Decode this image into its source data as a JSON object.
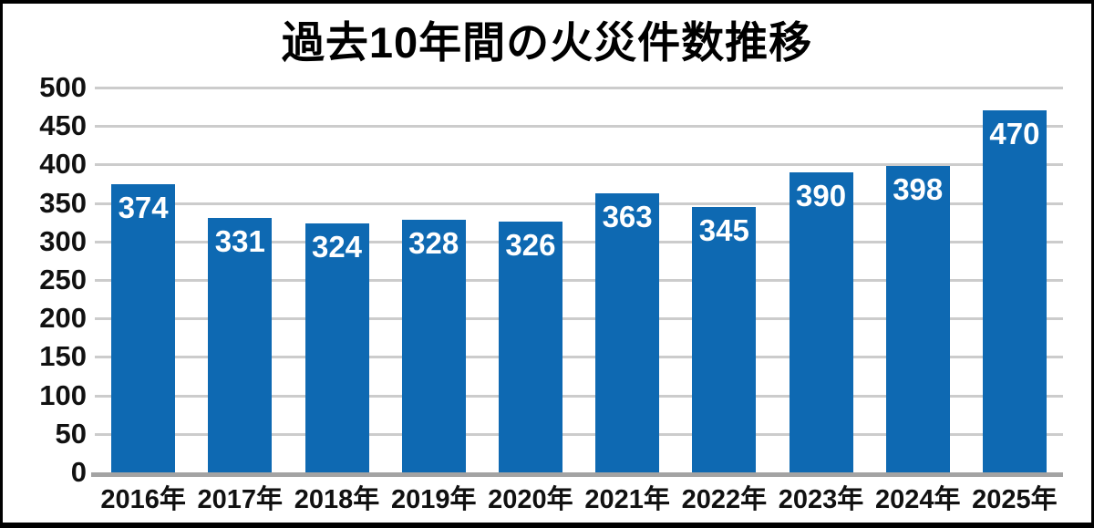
{
  "title": "過去10年間の火災件数推移",
  "chart_data": {
    "type": "bar",
    "title": "過去10年間の火災件数推移",
    "categories": [
      "2016年",
      "2017年",
      "2018年",
      "2019年",
      "2020年",
      "2021年",
      "2022年",
      "2023年",
      "2024年",
      "2025年"
    ],
    "values": [
      374,
      331,
      324,
      328,
      326,
      363,
      345,
      390,
      398,
      470
    ],
    "ylim": [
      0,
      500
    ],
    "yticks": [
      0,
      50,
      100,
      150,
      200,
      250,
      300,
      350,
      400,
      450,
      500
    ],
    "grid": "horizontal",
    "legend": "none",
    "xlabel": "",
    "ylabel": "",
    "colors": {
      "bar": "#0e69b2",
      "value_label": "#ffffff",
      "gridline": "#cccccc",
      "baseline": "#a3a3a3",
      "axis_text": "#111111",
      "title_text": "#000000",
      "frame_border": "#000000",
      "background": "#ffffff"
    }
  }
}
